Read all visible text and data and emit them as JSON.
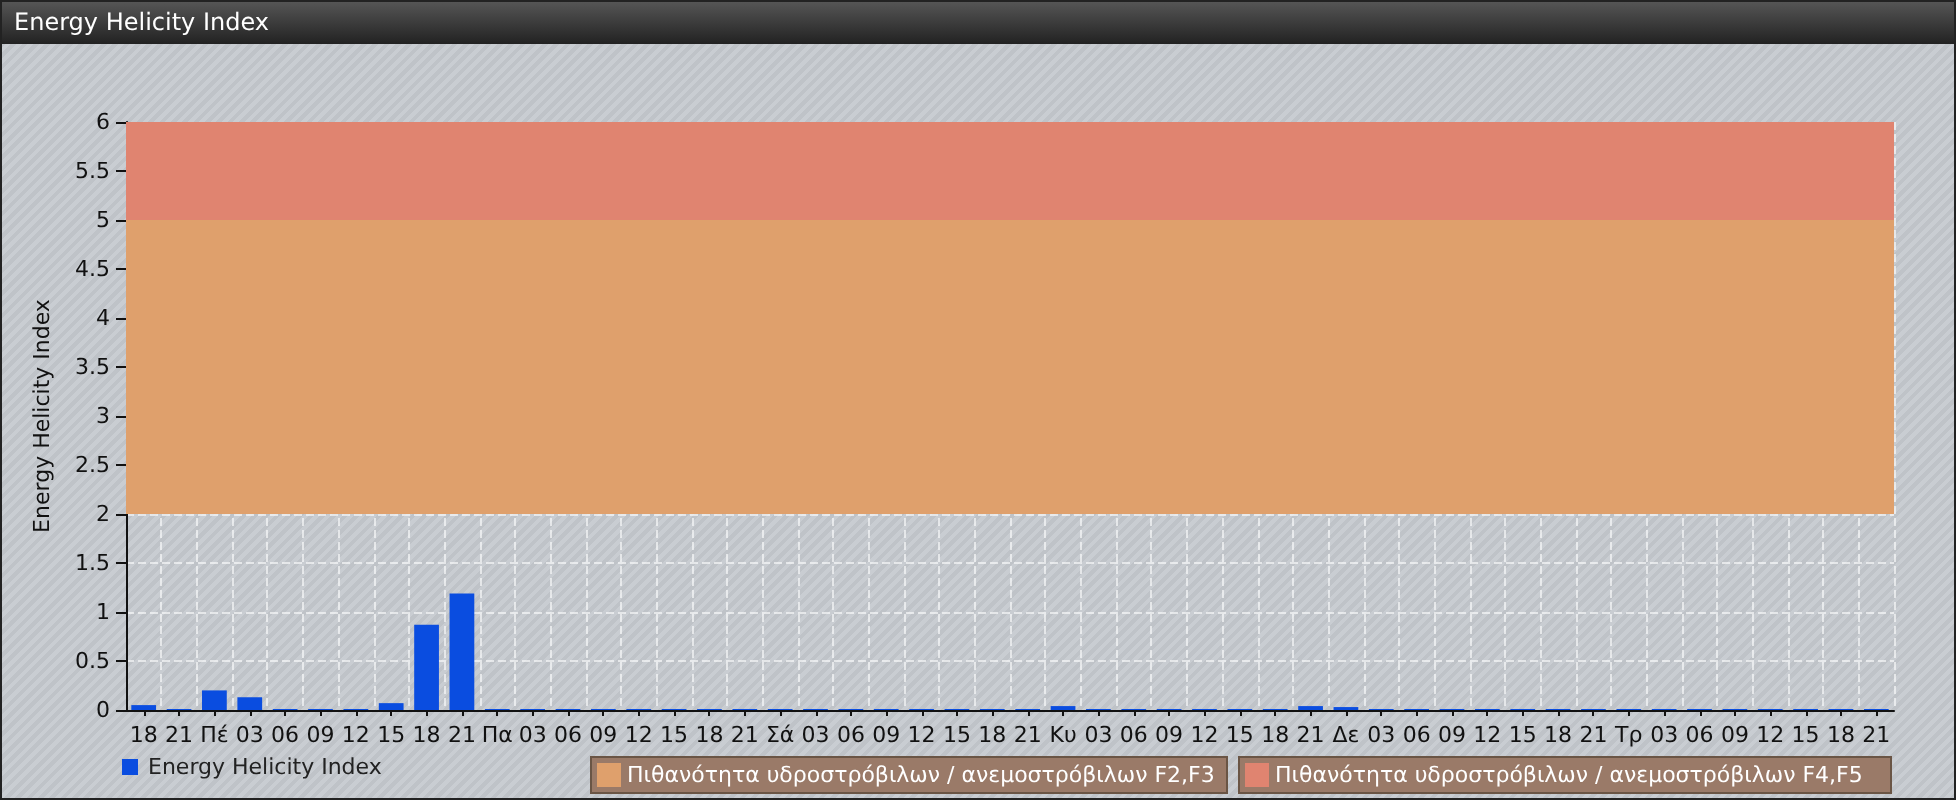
{
  "chart_data": {
    "type": "bar",
    "title": "Energy Helicity Index",
    "ylabel": "Energy Helicity Index",
    "categories": [
      "18",
      "21",
      "Πέ",
      "03",
      "06",
      "09",
      "12",
      "15",
      "18",
      "21",
      "Πα",
      "03",
      "06",
      "09",
      "12",
      "15",
      "18",
      "21",
      "Σά",
      "03",
      "06",
      "09",
      "12",
      "15",
      "18",
      "21",
      "Κυ",
      "03",
      "06",
      "09",
      "12",
      "15",
      "18",
      "21",
      "Δε",
      "03",
      "06",
      "09",
      "12",
      "15",
      "18",
      "21",
      "Τρ",
      "03",
      "06",
      "09",
      "12",
      "15",
      "18",
      "21"
    ],
    "series": [
      {
        "name": "Energy Helicity Index",
        "color": "#0a4de0",
        "values": [
          0.05,
          0.01,
          0.2,
          0.13,
          0.01,
          0.01,
          0.01,
          0.07,
          0.87,
          1.19,
          0.01,
          0.01,
          0.01,
          0.01,
          0.01,
          0.01,
          0.01,
          0.01,
          0.01,
          0.01,
          0.01,
          0.01,
          0.01,
          0.01,
          0.01,
          0.01,
          0.04,
          0.01,
          0.01,
          0.01,
          0.01,
          0.01,
          0.01,
          0.04,
          0.03,
          0.01,
          0.01,
          0.01,
          0.01,
          0.01,
          0.01,
          0.01,
          0.01,
          0.01,
          0.01,
          0.01,
          0.01,
          0.01,
          0.01,
          0.01
        ]
      }
    ],
    "ylim": [
      0,
      6
    ],
    "yticks": [
      0,
      0.5,
      1,
      1.5,
      2,
      2.5,
      3,
      3.5,
      4,
      4.5,
      5,
      5.5,
      6
    ],
    "bands": [
      {
        "axis": "y",
        "from": 2,
        "to": 5,
        "label": "Πιθανότητα υδροστρόβιλων / ανεμοστρόβιλων F2,F3",
        "color": "#dfa06c"
      },
      {
        "axis": "y",
        "from": 5,
        "to": 6,
        "label": "Πιθανότητα υδροστρόβιλων / ανεμοστρόβιλων F4,F5",
        "color": "#e08470"
      }
    ],
    "grid": true,
    "legend": "bottom left"
  }
}
